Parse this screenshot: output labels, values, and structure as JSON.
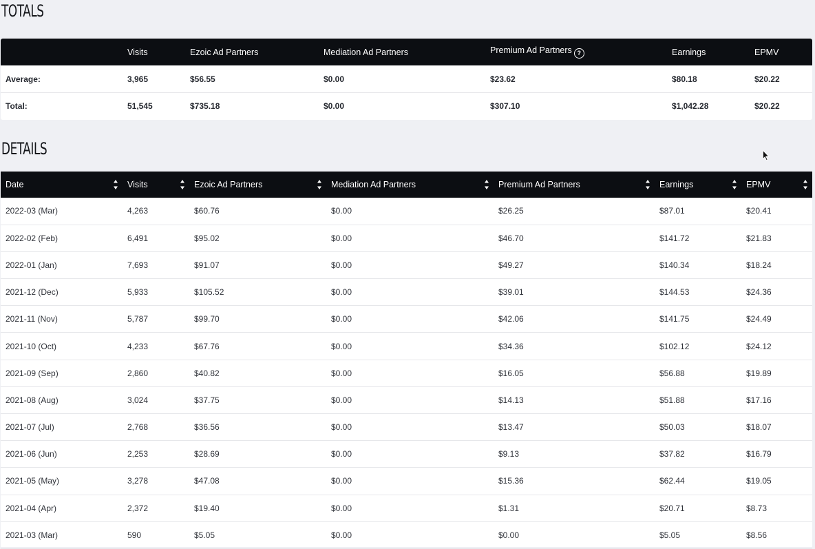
{
  "totals": {
    "title": "TOTALS",
    "headers": [
      "",
      "Visits",
      "Ezoic Ad Partners",
      "Mediation Ad Partners",
      "Premium Ad Partners",
      "Earnings",
      "EPMV"
    ],
    "rows": [
      [
        "Average:",
        "3,965",
        "$56.55",
        "$0.00",
        "$23.62",
        "$80.18",
        "$20.22"
      ],
      [
        "Total:",
        "51,545",
        "$735.18",
        "$0.00",
        "$307.10",
        "$1,042.28",
        "$20.22"
      ]
    ],
    "help_icon": "question-circle-icon"
  },
  "details": {
    "title": "DETAILS",
    "headers": [
      "Date",
      "Visits",
      "Ezoic Ad Partners",
      "Mediation Ad Partners",
      "Premium Ad Partners",
      "Earnings",
      "EPMV"
    ],
    "sort_icon": "sort-updown-icon",
    "rows": [
      [
        "2022-03 (Mar)",
        "4,263",
        "$60.76",
        "$0.00",
        "$26.25",
        "$87.01",
        "$20.41"
      ],
      [
        "2022-02 (Feb)",
        "6,491",
        "$95.02",
        "$0.00",
        "$46.70",
        "$141.72",
        "$21.83"
      ],
      [
        "2022-01 (Jan)",
        "7,693",
        "$91.07",
        "$0.00",
        "$49.27",
        "$140.34",
        "$18.24"
      ],
      [
        "2021-12 (Dec)",
        "5,933",
        "$105.52",
        "$0.00",
        "$39.01",
        "$144.53",
        "$24.36"
      ],
      [
        "2021-11 (Nov)",
        "5,787",
        "$99.70",
        "$0.00",
        "$42.06",
        "$141.75",
        "$24.49"
      ],
      [
        "2021-10 (Oct)",
        "4,233",
        "$67.76",
        "$0.00",
        "$34.36",
        "$102.12",
        "$24.12"
      ],
      [
        "2021-09 (Sep)",
        "2,860",
        "$40.82",
        "$0.00",
        "$16.05",
        "$56.88",
        "$19.89"
      ],
      [
        "2021-08 (Aug)",
        "3,024",
        "$37.75",
        "$0.00",
        "$14.13",
        "$51.88",
        "$17.16"
      ],
      [
        "2021-07 (Jul)",
        "2,768",
        "$36.56",
        "$0.00",
        "$13.47",
        "$50.03",
        "$18.07"
      ],
      [
        "2021-06 (Jun)",
        "2,253",
        "$28.69",
        "$0.00",
        "$9.13",
        "$37.82",
        "$16.79"
      ],
      [
        "2021-05 (May)",
        "3,278",
        "$47.08",
        "$0.00",
        "$15.36",
        "$62.44",
        "$19.05"
      ],
      [
        "2021-04 (Apr)",
        "2,372",
        "$19.40",
        "$0.00",
        "$1.31",
        "$20.71",
        "$8.73"
      ],
      [
        "2021-03 (Mar)",
        "590",
        "$5.05",
        "$0.00",
        "$0.00",
        "$5.05",
        "$8.56"
      ]
    ]
  }
}
